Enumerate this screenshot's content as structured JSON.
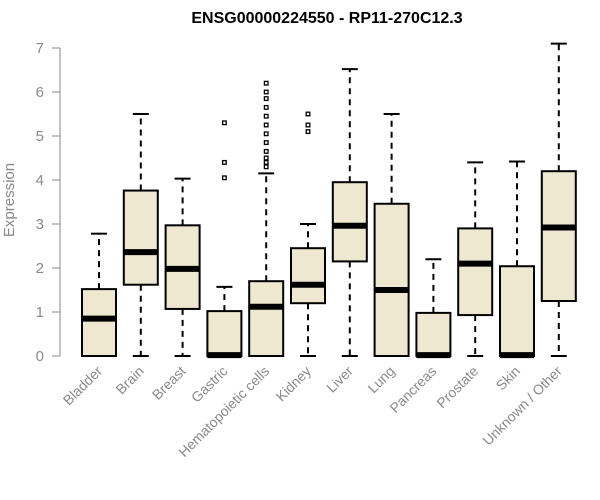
{
  "chart_data": {
    "type": "box",
    "title": "ENSG00000224550 - RP11-270C12.3",
    "xlabel": "",
    "ylabel": "Expression",
    "ylim": [
      0,
      7.2
    ],
    "yticks": [
      0,
      1,
      2,
      3,
      4,
      5,
      6,
      7
    ],
    "box_color": "#efe8d0",
    "series": [
      {
        "name": "Bladder",
        "min": 0,
        "q1": 0,
        "median": 0.85,
        "q3": 1.52,
        "max": 2.78,
        "outliers": []
      },
      {
        "name": "Brain",
        "min": 0,
        "q1": 1.62,
        "median": 2.36,
        "q3": 3.76,
        "max": 5.5,
        "outliers": []
      },
      {
        "name": "Breast",
        "min": 0,
        "q1": 1.07,
        "median": 1.98,
        "q3": 2.97,
        "max": 4.03,
        "outliers": []
      },
      {
        "name": "Gastric",
        "min": 0,
        "q1": 0,
        "median": 0.02,
        "q3": 1.02,
        "max": 1.57,
        "outliers": [
          4.05,
          4.4,
          5.3
        ]
      },
      {
        "name": "Hematopoietic cells",
        "min": 0,
        "q1": 0,
        "median": 1.12,
        "q3": 1.7,
        "max": 4.15,
        "outliers": [
          4.3,
          4.4,
          4.5,
          4.65,
          4.85,
          5.05,
          5.25,
          5.45,
          5.65,
          5.85,
          6.0,
          6.2
        ]
      },
      {
        "name": "Kidney",
        "min": 0,
        "q1": 1.2,
        "median": 1.62,
        "q3": 2.45,
        "max": 3.0,
        "outliers": [
          5.1,
          5.25,
          5.5
        ]
      },
      {
        "name": "Liver",
        "min": 0,
        "q1": 2.15,
        "median": 2.96,
        "q3": 3.95,
        "max": 6.52,
        "outliers": []
      },
      {
        "name": "Lung",
        "min": 0,
        "q1": 0,
        "median": 1.5,
        "q3": 3.46,
        "max": 5.5,
        "outliers": []
      },
      {
        "name": "Pancreas",
        "min": 0,
        "q1": 0,
        "median": 0.02,
        "q3": 0.98,
        "max": 2.2,
        "outliers": []
      },
      {
        "name": "Prostate",
        "min": 0,
        "q1": 0.93,
        "median": 2.1,
        "q3": 2.9,
        "max": 4.4,
        "outliers": []
      },
      {
        "name": "Skin",
        "min": 0,
        "q1": 0,
        "median": 0.02,
        "q3": 2.04,
        "max": 4.42,
        "outliers": []
      },
      {
        "name": "Unknown / Other",
        "min": 0,
        "q1": 1.25,
        "median": 2.92,
        "q3": 4.2,
        "max": 7.1,
        "outliers": []
      }
    ]
  }
}
